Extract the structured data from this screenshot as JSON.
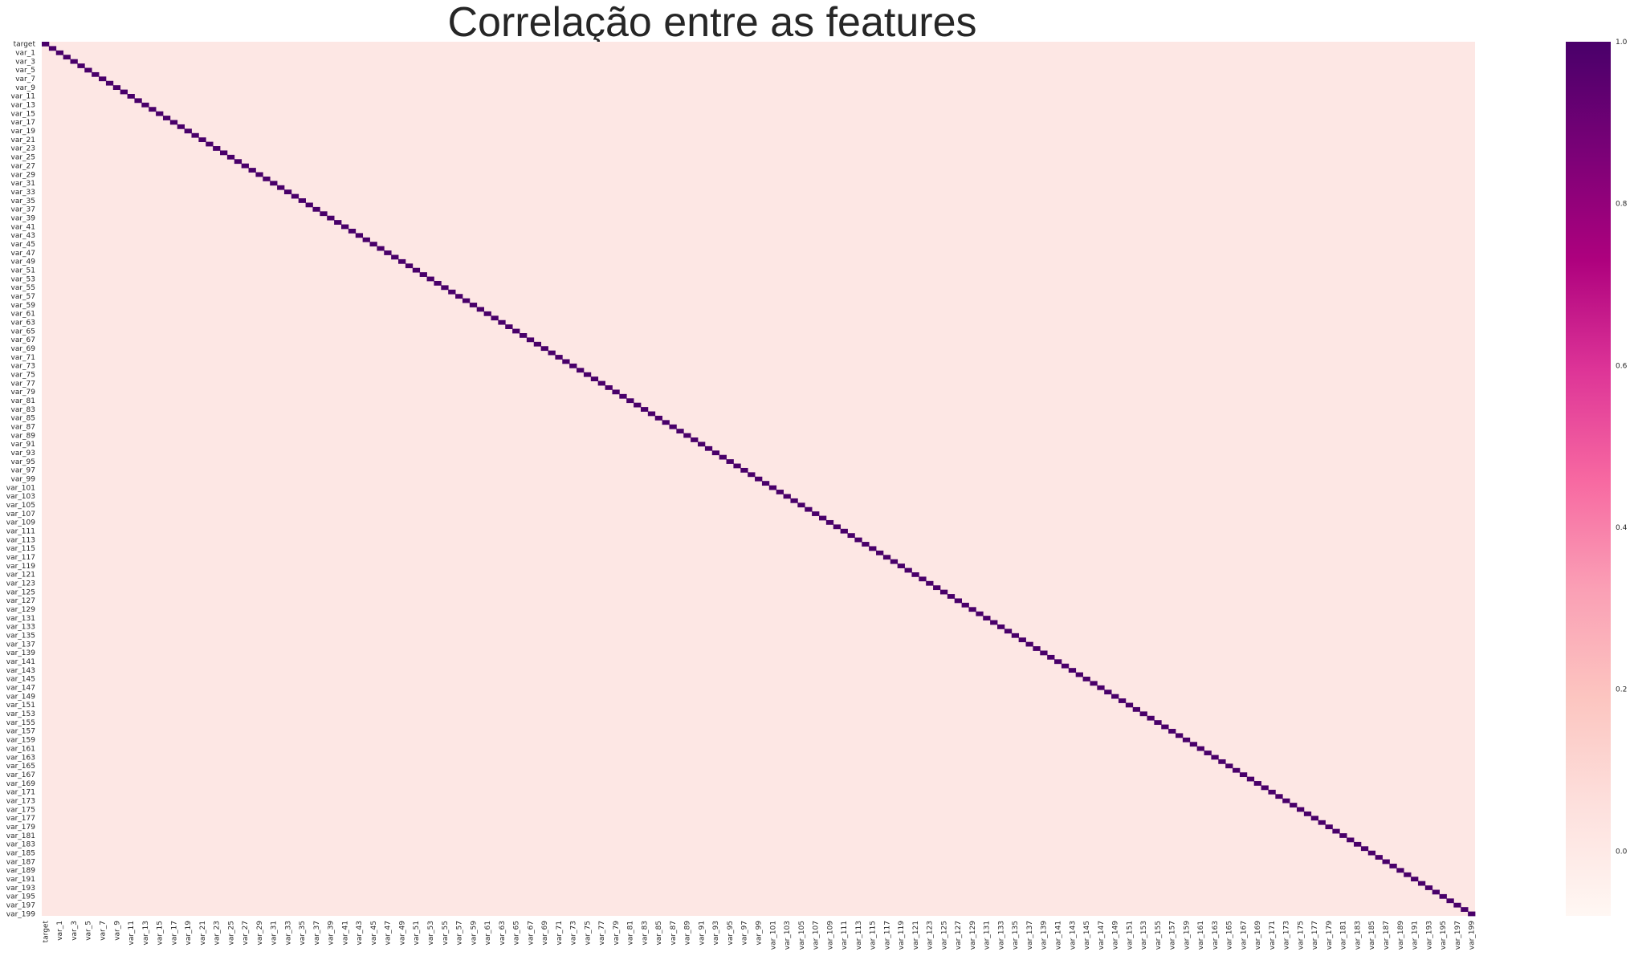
{
  "chart_data": {
    "type": "heatmap",
    "title": "Correlação entre as features",
    "xlabel": "",
    "ylabel": "",
    "variables": "target, var_0 … var_199 (201 features)",
    "row_tick_labels": [
      "target",
      "var_1",
      "var_3",
      "var_5",
      "var_7",
      "var_9",
      "var_11",
      "var_13",
      "var_15",
      "var_17",
      "var_19",
      "var_21",
      "var_23",
      "var_25",
      "var_27",
      "var_29",
      "var_31",
      "var_33",
      "var_35",
      "var_37",
      "var_39",
      "var_41",
      "var_43",
      "var_45",
      "var_47",
      "var_49",
      "var_51",
      "var_53",
      "var_55",
      "var_57",
      "var_59",
      "var_61",
      "var_63",
      "var_65",
      "var_67",
      "var_69",
      "var_71",
      "var_73",
      "var_75",
      "var_77",
      "var_79",
      "var_81",
      "var_83",
      "var_85",
      "var_87",
      "var_89",
      "var_91",
      "var_93",
      "var_95",
      "var_97",
      "var_99",
      "var_101",
      "var_103",
      "var_105",
      "var_107",
      "var_109",
      "var_111",
      "var_113",
      "var_115",
      "var_117",
      "var_119",
      "var_121",
      "var_123",
      "var_125",
      "var_127",
      "var_129",
      "var_131",
      "var_133",
      "var_135",
      "var_137",
      "var_139",
      "var_141",
      "var_143",
      "var_145",
      "var_147",
      "var_149",
      "var_151",
      "var_153",
      "var_155",
      "var_157",
      "var_159",
      "var_161",
      "var_163",
      "var_165",
      "var_167",
      "var_169",
      "var_171",
      "var_173",
      "var_175",
      "var_177",
      "var_179",
      "var_181",
      "var_183",
      "var_185",
      "var_187",
      "var_189",
      "var_191",
      "var_193",
      "var_195",
      "var_197",
      "var_199"
    ],
    "col_tick_labels": [
      "target",
      "var_1",
      "var_3",
      "var_5",
      "var_7",
      "var_9",
      "var_11",
      "var_13",
      "var_15",
      "var_17",
      "var_19",
      "var_21",
      "var_23",
      "var_25",
      "var_27",
      "var_29",
      "var_31",
      "var_33",
      "var_35",
      "var_37",
      "var_39",
      "var_41",
      "var_43",
      "var_45",
      "var_47",
      "var_49",
      "var_51",
      "var_53",
      "var_55",
      "var_57",
      "var_59",
      "var_61",
      "var_63",
      "var_65",
      "var_67",
      "var_69",
      "var_71",
      "var_73",
      "var_75",
      "var_77",
      "var_79",
      "var_81",
      "var_83",
      "var_85",
      "var_87",
      "var_89",
      "var_91",
      "var_93",
      "var_95",
      "var_97",
      "var_99",
      "var_101",
      "var_103",
      "var_105",
      "var_107",
      "var_109",
      "var_111",
      "var_113",
      "var_115",
      "var_117",
      "var_119",
      "var_121",
      "var_123",
      "var_125",
      "var_127",
      "var_129",
      "var_131",
      "var_133",
      "var_135",
      "var_137",
      "var_139",
      "var_141",
      "var_143",
      "var_145",
      "var_147",
      "var_149",
      "var_151",
      "var_153",
      "var_155",
      "var_157",
      "var_159",
      "var_161",
      "var_163",
      "var_165",
      "var_167",
      "var_169",
      "var_171",
      "var_173",
      "var_175",
      "var_177",
      "var_179",
      "var_181",
      "var_183",
      "var_185",
      "var_187",
      "var_189",
      "var_191",
      "var_193",
      "var_195",
      "var_197",
      "var_199"
    ],
    "diagonal_value": 1.0,
    "off_diagonal_value": 0.0,
    "colorbar": {
      "cmap": "RdPu",
      "ticks": [
        "0.0",
        "0.2",
        "0.4",
        "0.6",
        "0.8",
        "1.0"
      ],
      "vmin": -0.08,
      "vmax": 1.0
    },
    "colors": {
      "low": "#fff7f3",
      "zero": "#fde7e4",
      "high": "#49006a"
    }
  }
}
